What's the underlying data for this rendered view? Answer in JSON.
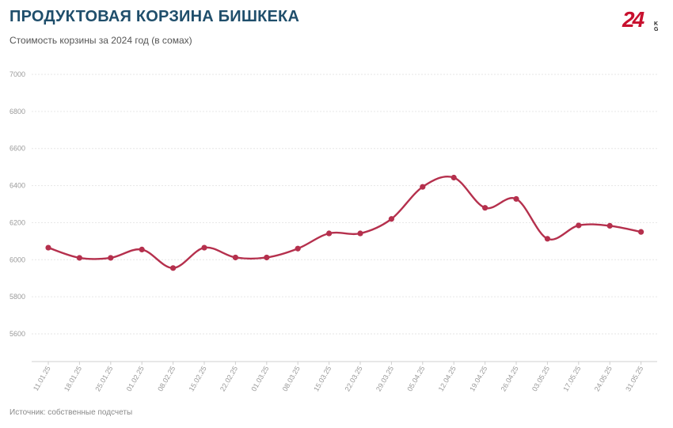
{
  "header": {
    "title": "ПРОДУКТОВАЯ КОРЗИНА БИШКЕКА",
    "subtitle": "Стоимость корзины за 2024 год (в сомах)"
  },
  "logo": {
    "number": "24",
    "suffix": "KG"
  },
  "footer": {
    "source": "Источник: собственные подсчеты"
  },
  "colors": {
    "line": "#b5304d",
    "title": "#1f4e6b",
    "grid": "#e6e6e6"
  },
  "chart_data": {
    "type": "line",
    "title": "ПРОДУКТОВАЯ КОРЗИНА БИШКЕКА",
    "subtitle": "Стоимость корзины за 2024 год (в сомах)",
    "xlabel": "",
    "ylabel": "",
    "ylim": [
      5450,
      7000
    ],
    "yticks": [
      5600,
      5800,
      6000,
      6200,
      6400,
      6600,
      6800,
      7000
    ],
    "grid": true,
    "categories": [
      "11.01.25",
      "18.01.25",
      "25.01.25",
      "01.02.25",
      "08.02.25",
      "15.02.25",
      "22.02.25",
      "01.03.25",
      "08.03.25",
      "15.03.25",
      "22.03.25",
      "29.03.25",
      "05.04.25",
      "12.04.25",
      "19.04.25",
      "26.04.25",
      "03.05.25",
      "17.05.25",
      "24.05.25",
      "31.05.25"
    ],
    "series": [
      {
        "values": [
          6065,
          6010,
          6010,
          6055,
          5955,
          6065,
          6012,
          6012,
          6060,
          6142,
          6142,
          6220,
          6393,
          6443,
          6280,
          6328,
          6113,
          6185,
          6183,
          6150
        ]
      }
    ]
  }
}
